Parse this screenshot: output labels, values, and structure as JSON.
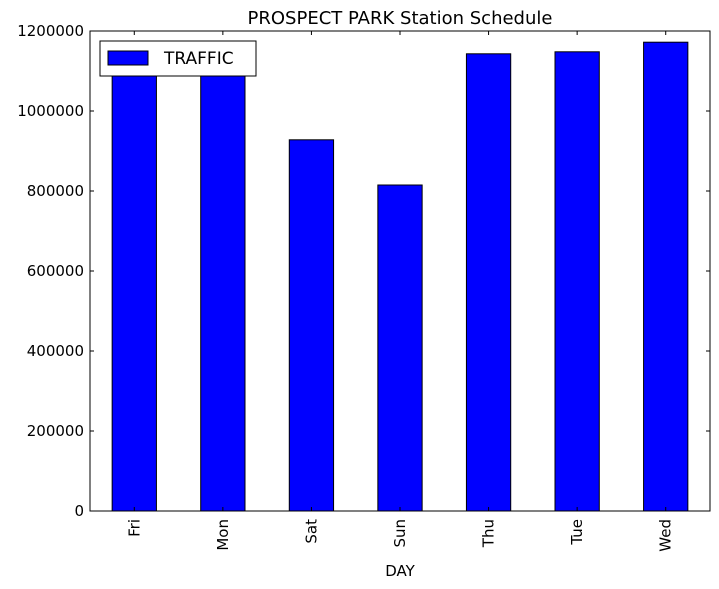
{
  "chart_data": {
    "type": "bar",
    "title": "PROSPECT PARK Station Schedule",
    "xlabel": "DAY",
    "ylabel": "",
    "categories": [
      "Fri",
      "Mon",
      "Sat",
      "Sun",
      "Thu",
      "Tue",
      "Wed"
    ],
    "series": [
      {
        "name": "TRAFFIC",
        "color": "#0000ff",
        "values": [
          1095000,
          1088000,
          928000,
          815000,
          1143000,
          1148000,
          1172000
        ]
      }
    ],
    "ylim": [
      0,
      1200000
    ],
    "yticks": [
      0,
      200000,
      400000,
      600000,
      800000,
      1000000,
      1200000
    ],
    "ytick_labels": [
      "0",
      "200000",
      "400000",
      "600000",
      "800000",
      "1000000",
      "1200000"
    ],
    "grid": false,
    "legend_position": "top-left"
  }
}
